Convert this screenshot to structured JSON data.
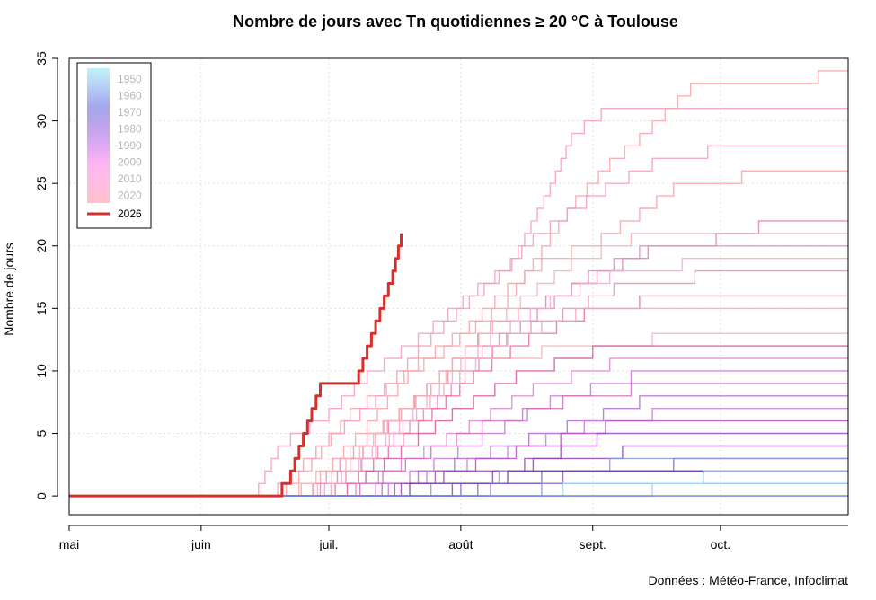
{
  "chart_data": {
    "type": "line",
    "title": "Nombre de jours avec Tn quotidiennes ≥ 20 °C à Toulouse",
    "ylabel": "Nombre de jours",
    "xlabel": "",
    "credit": "Données : Météo-France, Infoclimat",
    "x_range": [
      "05-01",
      "10-31"
    ],
    "x_ticks": [
      {
        "label": "mai",
        "date": "05-01"
      },
      {
        "label": "juin",
        "date": "06-01"
      },
      {
        "label": "juil.",
        "date": "07-01"
      },
      {
        "label": "août",
        "date": "08-01"
      },
      {
        "label": "sept.",
        "date": "09-01"
      },
      {
        "label": "oct.",
        "date": "10-01"
      }
    ],
    "ylim": [
      -1.5,
      35
    ],
    "y_ticks": [
      0,
      5,
      10,
      15,
      20,
      25,
      30,
      35
    ],
    "grid": true,
    "legend": {
      "placement": "top-left",
      "gradient_labels": [
        "1950",
        "1960",
        "1970",
        "1980",
        "1990",
        "2000",
        "2010",
        "2020"
      ],
      "gradient_colors": [
        "#bff3f8",
        "#b7cdf5",
        "#a3a8ee",
        "#bfa3eb",
        "#dfa8f5",
        "#ffb5f2",
        "#ffbde1",
        "#ffc1c6"
      ],
      "highlight_label": "2026",
      "highlight_color": "#d7302c"
    },
    "series": [
      {
        "name": "2026",
        "color": "#d7302c",
        "highlight": true,
        "points": [
          [
            "05-01",
            0
          ],
          [
            "06-18",
            0
          ],
          [
            "06-20",
            1
          ],
          [
            "06-21",
            1
          ],
          [
            "06-22",
            2
          ],
          [
            "06-24",
            4
          ],
          [
            "06-26",
            6
          ],
          [
            "06-28",
            8
          ],
          [
            "06-29",
            9
          ],
          [
            "07-07",
            9
          ],
          [
            "07-10",
            12
          ],
          [
            "07-13",
            15
          ],
          [
            "07-14",
            16
          ],
          [
            "07-16",
            18
          ],
          [
            "07-18",
            21
          ]
        ]
      },
      {
        "color": "#f79bc4",
        "points": [
          [
            "05-01",
            0
          ],
          [
            "06-13",
            0
          ],
          [
            "06-16",
            2
          ],
          [
            "06-19",
            4
          ],
          [
            "06-22",
            5
          ],
          [
            "07-01",
            7
          ],
          [
            "07-10",
            10
          ],
          [
            "07-22",
            13
          ],
          [
            "08-05",
            17
          ],
          [
            "08-13",
            19
          ],
          [
            "08-22",
            25
          ],
          [
            "08-27",
            29
          ],
          [
            "08-30",
            30
          ],
          [
            "09-03",
            31
          ],
          [
            "10-31",
            31
          ]
        ]
      },
      {
        "color": "#f8a5a8",
        "points": [
          [
            "05-01",
            0
          ],
          [
            "06-18",
            0
          ],
          [
            "06-27",
            3
          ],
          [
            "07-06",
            7
          ],
          [
            "07-14",
            9
          ],
          [
            "07-28",
            12
          ],
          [
            "08-12",
            16
          ],
          [
            "08-20",
            20
          ],
          [
            "08-28",
            24
          ],
          [
            "09-05",
            27
          ],
          [
            "09-12",
            29
          ],
          [
            "09-18",
            31
          ],
          [
            "09-24",
            33
          ],
          [
            "10-16",
            33
          ],
          [
            "10-24",
            34
          ],
          [
            "10-31",
            34
          ]
        ]
      },
      {
        "color": "#f59bb9",
        "points": [
          [
            "05-01",
            0
          ],
          [
            "06-16",
            0
          ],
          [
            "06-22",
            2
          ],
          [
            "07-01",
            5
          ],
          [
            "07-12",
            8
          ],
          [
            "07-22",
            12
          ],
          [
            "08-03",
            16
          ],
          [
            "08-10",
            18
          ],
          [
            "08-18",
            21
          ],
          [
            "08-26",
            23
          ],
          [
            "09-04",
            25
          ],
          [
            "09-15",
            27
          ],
          [
            "09-28",
            28
          ],
          [
            "10-31",
            28
          ]
        ]
      },
      {
        "color": "#f7a2a6",
        "points": [
          [
            "05-01",
            0
          ],
          [
            "06-20",
            0
          ],
          [
            "06-29",
            2
          ],
          [
            "07-10",
            6
          ],
          [
            "07-22",
            11
          ],
          [
            "08-03",
            14
          ],
          [
            "08-12",
            17
          ],
          [
            "08-20",
            19
          ],
          [
            "09-03",
            21
          ],
          [
            "09-12",
            23
          ],
          [
            "09-20",
            25
          ],
          [
            "10-06",
            26
          ],
          [
            "10-31",
            26
          ]
        ]
      },
      {
        "color": "#ef7fa6",
        "points": [
          [
            "05-01",
            0
          ],
          [
            "06-22",
            0
          ],
          [
            "07-03",
            2
          ],
          [
            "07-15",
            6
          ],
          [
            "07-27",
            10
          ],
          [
            "08-08",
            14
          ],
          [
            "08-21",
            16
          ],
          [
            "09-02",
            18
          ],
          [
            "09-14",
            20
          ],
          [
            "09-30",
            21
          ],
          [
            "10-10",
            22
          ],
          [
            "10-31",
            22
          ]
        ]
      },
      {
        "color": "#f3b1b6",
        "points": [
          [
            "05-01",
            0
          ],
          [
            "06-25",
            0
          ],
          [
            "07-05",
            3
          ],
          [
            "07-18",
            7
          ],
          [
            "08-02",
            12
          ],
          [
            "08-15",
            16
          ],
          [
            "08-27",
            19
          ],
          [
            "09-10",
            21
          ],
          [
            "10-31",
            21
          ]
        ]
      },
      {
        "color": "#e986c6",
        "points": [
          [
            "05-01",
            0
          ],
          [
            "06-23",
            0
          ],
          [
            "07-05",
            2
          ],
          [
            "07-20",
            6
          ],
          [
            "08-02",
            10
          ],
          [
            "08-15",
            14
          ],
          [
            "08-31",
            18
          ],
          [
            "09-12",
            20
          ],
          [
            "10-31",
            20
          ]
        ]
      },
      {
        "color": "#f4a8d8",
        "points": [
          [
            "05-01",
            0
          ],
          [
            "06-26",
            0
          ],
          [
            "07-08",
            3
          ],
          [
            "07-24",
            8
          ],
          [
            "08-08",
            13
          ],
          [
            "08-22",
            16
          ],
          [
            "09-05",
            18
          ],
          [
            "09-22",
            19
          ],
          [
            "10-31",
            19
          ]
        ]
      },
      {
        "color": "#ef92a8",
        "points": [
          [
            "05-01",
            0
          ],
          [
            "06-24",
            0
          ],
          [
            "07-10",
            5
          ],
          [
            "07-25",
            9
          ],
          [
            "08-10",
            13
          ],
          [
            "08-25",
            15
          ],
          [
            "09-06",
            17
          ],
          [
            "09-25",
            18
          ],
          [
            "10-31",
            18
          ]
        ]
      },
      {
        "color": "#e7709a",
        "points": [
          [
            "05-01",
            0
          ],
          [
            "06-27",
            0
          ],
          [
            "07-08",
            2
          ],
          [
            "07-22",
            6
          ],
          [
            "08-04",
            10
          ],
          [
            "08-17",
            13
          ],
          [
            "08-30",
            15
          ],
          [
            "09-12",
            16
          ],
          [
            "10-31",
            16
          ]
        ]
      },
      {
        "color": "#f0a9c0",
        "points": [
          [
            "05-01",
            0
          ],
          [
            "06-28",
            0
          ],
          [
            "07-12",
            4
          ],
          [
            "07-28",
            9
          ],
          [
            "08-12",
            13
          ],
          [
            "08-28",
            15
          ],
          [
            "10-31",
            15
          ]
        ]
      },
      {
        "color": "#efb5b8",
        "points": [
          [
            "05-01",
            0
          ],
          [
            "06-20",
            0
          ],
          [
            "07-02",
            3
          ],
          [
            "07-18",
            7
          ],
          [
            "08-01",
            11
          ],
          [
            "08-20",
            12
          ],
          [
            "09-15",
            13
          ],
          [
            "10-31",
            13
          ]
        ]
      },
      {
        "color": "#d65aa0",
        "points": [
          [
            "05-01",
            0
          ],
          [
            "07-01",
            0
          ],
          [
            "07-14",
            3
          ],
          [
            "07-30",
            7
          ],
          [
            "08-14",
            10
          ],
          [
            "09-01",
            12
          ],
          [
            "10-31",
            12
          ]
        ]
      },
      {
        "color": "#dc87d4",
        "points": [
          [
            "05-01",
            0
          ],
          [
            "07-02",
            0
          ],
          [
            "07-18",
            3
          ],
          [
            "08-03",
            6
          ],
          [
            "08-18",
            9
          ],
          [
            "09-05",
            11
          ],
          [
            "10-31",
            11
          ]
        ]
      },
      {
        "color": "#c77ad8",
        "points": [
          [
            "05-01",
            0
          ],
          [
            "07-04",
            0
          ],
          [
            "07-20",
            2
          ],
          [
            "08-06",
            5
          ],
          [
            "08-22",
            8
          ],
          [
            "09-10",
            10
          ],
          [
            "10-31",
            10
          ]
        ]
      },
      {
        "color": "#d26fbd",
        "points": [
          [
            "05-01",
            0
          ],
          [
            "07-03",
            0
          ],
          [
            "07-19",
            3
          ],
          [
            "08-06",
            6
          ],
          [
            "08-25",
            8
          ],
          [
            "09-10",
            9
          ],
          [
            "10-31",
            9
          ]
        ]
      },
      {
        "color": "#b56ccf",
        "points": [
          [
            "05-01",
            0
          ],
          [
            "07-05",
            0
          ],
          [
            "07-22",
            2
          ],
          [
            "08-08",
            4
          ],
          [
            "08-26",
            6
          ],
          [
            "09-12",
            8
          ],
          [
            "10-31",
            8
          ]
        ]
      },
      {
        "color": "#c67fd9",
        "points": [
          [
            "05-01",
            0
          ],
          [
            "07-06",
            0
          ],
          [
            "07-24",
            2
          ],
          [
            "08-12",
            4
          ],
          [
            "08-30",
            6
          ],
          [
            "09-15",
            7
          ],
          [
            "10-31",
            7
          ]
        ]
      },
      {
        "color": "#b155c2",
        "points": [
          [
            "05-01",
            0
          ],
          [
            "07-07",
            0
          ],
          [
            "07-26",
            2
          ],
          [
            "08-14",
            4
          ],
          [
            "09-04",
            6
          ],
          [
            "10-31",
            6
          ]
        ]
      },
      {
        "color": "#9c4ab8",
        "points": [
          [
            "05-01",
            0
          ],
          [
            "07-08",
            0
          ],
          [
            "07-28",
            2
          ],
          [
            "08-16",
            3
          ],
          [
            "09-02",
            5
          ],
          [
            "10-31",
            5
          ]
        ]
      },
      {
        "color": "#8c47b4",
        "points": [
          [
            "05-01",
            0
          ],
          [
            "07-10",
            0
          ],
          [
            "07-30",
            1
          ],
          [
            "08-18",
            3
          ],
          [
            "09-08",
            4
          ],
          [
            "10-31",
            4
          ]
        ]
      },
      {
        "color": "#7d6fd0",
        "points": [
          [
            "05-01",
            0
          ],
          [
            "07-12",
            0
          ],
          [
            "08-01",
            1
          ],
          [
            "08-20",
            2
          ],
          [
            "09-20",
            3
          ],
          [
            "10-31",
            3
          ]
        ]
      },
      {
        "color": "#8f9bdb",
        "points": [
          [
            "05-01",
            0
          ],
          [
            "07-08",
            0
          ],
          [
            "07-25",
            1
          ],
          [
            "08-10",
            2
          ],
          [
            "09-05",
            3
          ],
          [
            "10-31",
            3
          ]
        ]
      },
      {
        "color": "#9a5bc6",
        "points": [
          [
            "05-01",
            0
          ],
          [
            "07-15",
            0
          ],
          [
            "08-05",
            1
          ],
          [
            "08-25",
            2
          ],
          [
            "10-31",
            2
          ]
        ]
      },
      {
        "color": "#6f3ea8",
        "points": [
          [
            "05-01",
            0
          ],
          [
            "07-05",
            0
          ],
          [
            "07-20",
            1
          ],
          [
            "08-12",
            2
          ],
          [
            "10-31",
            2
          ]
        ]
      },
      {
        "color": "#7a6dd4",
        "points": [
          [
            "05-01",
            0
          ],
          [
            "07-18",
            0
          ],
          [
            "08-08",
            1
          ],
          [
            "10-31",
            1
          ]
        ]
      },
      {
        "color": "#8c8fe0",
        "points": [
          [
            "05-01",
            0
          ],
          [
            "07-22",
            0
          ],
          [
            "08-20",
            1
          ],
          [
            "10-31",
            1
          ]
        ]
      },
      {
        "color": "#9fc9f2",
        "points": [
          [
            "05-01",
            0
          ],
          [
            "08-10",
            0
          ],
          [
            "09-15",
            1
          ],
          [
            "09-27",
            2
          ],
          [
            "10-31",
            2
          ]
        ]
      },
      {
        "color": "#a7dff0",
        "points": [
          [
            "05-01",
            0
          ],
          [
            "07-25",
            0
          ],
          [
            "08-25",
            1
          ],
          [
            "10-31",
            1
          ]
        ]
      },
      {
        "color": "#5a6ad0",
        "points": [
          [
            "05-01",
            0
          ],
          [
            "10-31",
            0
          ]
        ]
      }
    ]
  }
}
